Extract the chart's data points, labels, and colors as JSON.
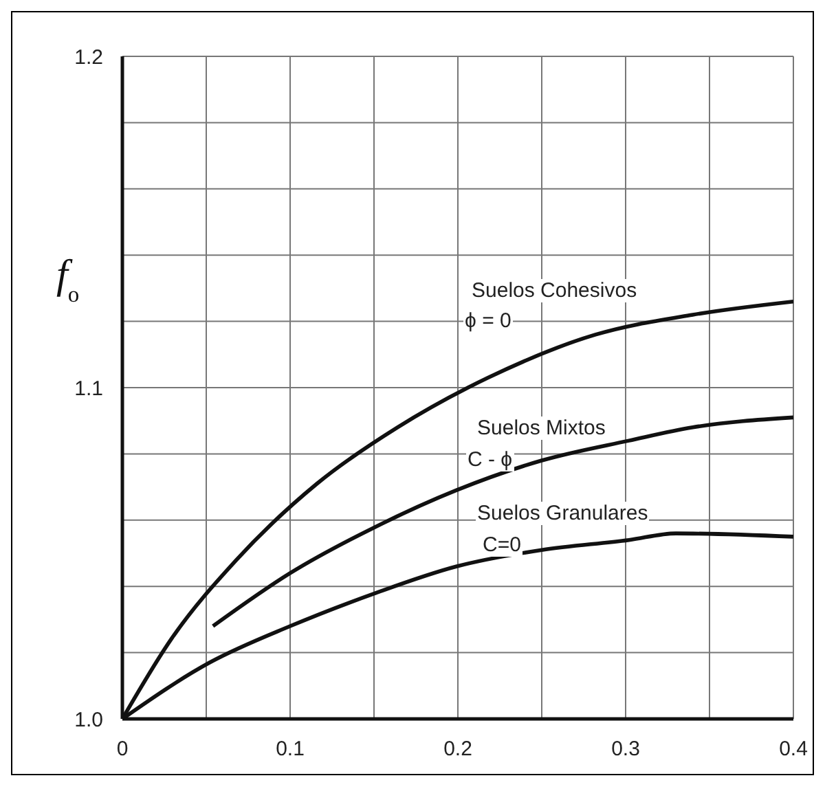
{
  "chart_data": {
    "type": "line",
    "ylabel": "f$_{o}$",
    "xlim": [
      0,
      0.4
    ],
    "ylim": [
      1.0,
      1.2
    ],
    "xticks": [
      0,
      {
        "value": 0.05,
        "label": null
      },
      0.1,
      {
        "value": 0.15,
        "label": null
      },
      0.2,
      {
        "value": 0.25,
        "label": null
      },
      0.3,
      {
        "value": 0.35,
        "label": null
      },
      0.4
    ],
    "yticks": [
      {
        "value": 1.0,
        "label": "1.0"
      },
      {
        "value": 1.02,
        "label": null
      },
      {
        "value": 1.04,
        "label": null
      },
      {
        "value": 1.06,
        "label": null
      },
      {
        "value": 1.08,
        "label": null
      },
      1.1,
      {
        "value": 1.12,
        "label": null
      },
      {
        "value": 1.14,
        "label": null
      },
      {
        "value": 1.16,
        "label": null
      },
      {
        "value": 1.18,
        "label": null
      },
      1.2
    ],
    "grid": true,
    "marker": "none",
    "line_style": "solid",
    "legend": false,
    "series": [
      {
        "color": "#111111",
        "x": [
          0,
          0.029,
          0.068,
          0.116,
          0.164,
          0.206,
          0.218,
          0.282,
          0.34,
          0.4
        ],
        "values": [
          1.0,
          1.024,
          1.048,
          1.071,
          1.088,
          1.1,
          1.103,
          1.116,
          1.122,
          1.126
        ]
      },
      {
        "color": "#111111",
        "x": [
          0.054,
          0.1,
          0.151,
          0.199,
          0.25,
          0.302,
          0.34,
          0.4
        ],
        "values": [
          1.028,
          1.044,
          1.058,
          1.069,
          1.078,
          1.084,
          1.088,
          1.091
        ]
      },
      {
        "color": "#111111",
        "x": [
          0,
          0.052,
          0.1,
          0.151,
          0.199,
          0.25,
          0.302,
          0.33,
          0.4
        ],
        "values": [
          1.0,
          1.017,
          1.028,
          1.038,
          1.046,
          1.051,
          1.054,
          1.056,
          1.055
        ]
      }
    ],
    "annotations": [
      "Suelos Cohesivos",
      "ϕ = 0",
      "Suelos Mixtos",
      "C - ϕ",
      "Suelos Granulares",
      "C=0"
    ]
  }
}
